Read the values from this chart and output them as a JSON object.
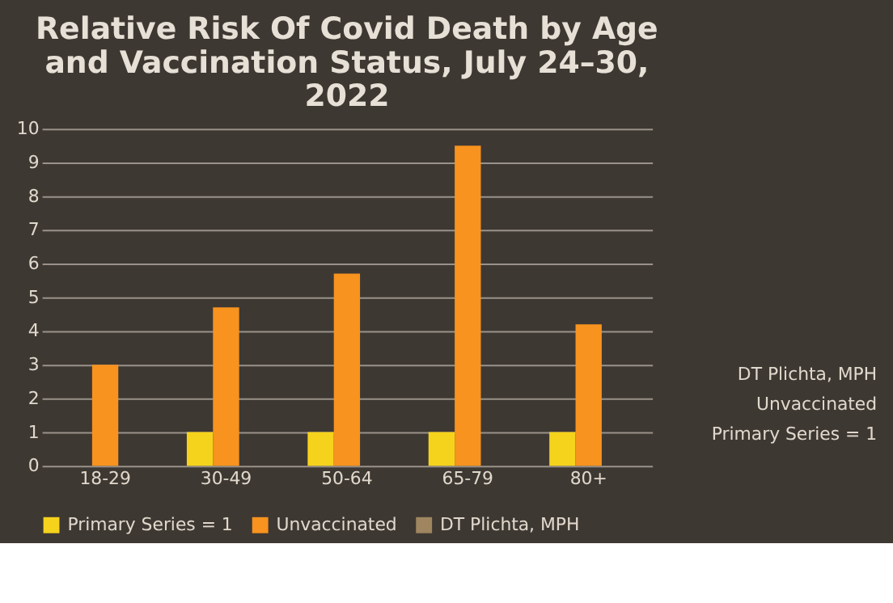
{
  "chart_data": {
    "type": "bar",
    "title": "Relative Risk Of Covid Death by Age\nand Vaccination Status,  July 24–30,\n2022",
    "categories": [
      "18-29",
      "30-49",
      "50-64",
      "65-79",
      "80+"
    ],
    "series": [
      {
        "name": "Primary Series = 1",
        "color": "#f5d31c",
        "values": [
          0,
          1,
          1,
          1,
          1
        ]
      },
      {
        "name": "Unvaccinated",
        "color": "#f7931e",
        "values": [
          3.0,
          4.7,
          5.7,
          9.5,
          4.2
        ]
      },
      {
        "name": "DT Plichta, MPH",
        "color": "#a08660",
        "values": [
          null,
          null,
          null,
          null,
          null
        ]
      }
    ],
    "ylim": [
      0,
      10
    ],
    "yticks": [
      0,
      1,
      2,
      3,
      4,
      5,
      6,
      7,
      8,
      9,
      10
    ],
    "grid": "y",
    "legend": "bottom",
    "annotations": [
      "DT Plichta, MPH",
      "Unvaccinated",
      "Primary Series = 1"
    ]
  }
}
